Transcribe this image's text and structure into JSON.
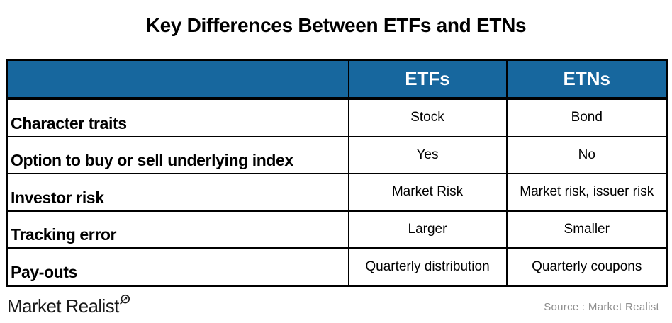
{
  "title": "Key Differences Between ETFs and ETNs",
  "table": {
    "header": {
      "blank": "",
      "etfs": "ETFs",
      "etns": "ETNs"
    },
    "rows": [
      {
        "label": "Character traits",
        "etfs": "Stock",
        "etns": "Bond"
      },
      {
        "label": "Option to buy or sell underlying index",
        "etfs": "Yes",
        "etns": "No"
      },
      {
        "label": "Investor risk",
        "etfs": "Market Risk",
        "etns": "Market risk, issuer risk"
      },
      {
        "label": "Tracking error",
        "etfs": "Larger",
        "etns": "Smaller"
      },
      {
        "label": "Pay-outs",
        "etfs": "Quarterly distribution",
        "etns": "Quarterly coupons"
      }
    ]
  },
  "footer": {
    "logo_text": "Market Realist",
    "logo_icon": "magnifier-trend-icon",
    "source_text": "Source : Market Realist"
  },
  "colors": {
    "header_bg": "#17679E",
    "header_text": "#FFFFFF",
    "border": "#000000",
    "source_gray": "#8E8E8E"
  }
}
